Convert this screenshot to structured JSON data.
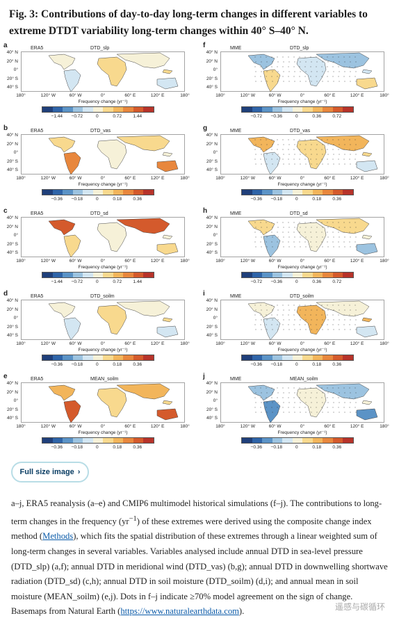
{
  "title": "Fig. 3: Contributions of day-to-day long-term changes in different variables to extreme DTDT variability long-term changes within 40° S–40° N.",
  "panels": [
    {
      "letter": "a",
      "source": "ERA5",
      "variable": "DTD_slp",
      "ticks": [
        "−1.44",
        "−0.72",
        "0",
        "0.72",
        "1.44"
      ]
    },
    {
      "letter": "f",
      "source": "MME",
      "variable": "DTD_slp",
      "ticks": [
        "−0.72",
        "−0.36",
        "0",
        "0.36",
        "0.72"
      ]
    },
    {
      "letter": "b",
      "source": "ERA5",
      "variable": "DTD_vas",
      "ticks": [
        "−0.36",
        "−0.18",
        "0",
        "0.18",
        "0.36"
      ]
    },
    {
      "letter": "g",
      "source": "MME",
      "variable": "DTD_vas",
      "ticks": [
        "−0.36",
        "−0.18",
        "0",
        "0.18",
        "0.36"
      ]
    },
    {
      "letter": "c",
      "source": "ERA5",
      "variable": "DTD_sd",
      "ticks": [
        "−1.44",
        "−0.72",
        "0",
        "0.72",
        "1.44"
      ]
    },
    {
      "letter": "h",
      "source": "MME",
      "variable": "DTD_sd",
      "ticks": [
        "−0.72",
        "−0.36",
        "0",
        "0.36",
        "0.72"
      ]
    },
    {
      "letter": "d",
      "source": "ERA5",
      "variable": "DTD_soilm",
      "ticks": [
        "−0.36",
        "−0.18",
        "0",
        "0.18",
        "0.36"
      ]
    },
    {
      "letter": "i",
      "source": "MME",
      "variable": "DTD_soilm",
      "ticks": [
        "−0.36",
        "−0.18",
        "0",
        "0.18",
        "0.36"
      ]
    },
    {
      "letter": "e",
      "source": "ERA5",
      "variable": "MEAN_soilm",
      "ticks": [
        "−0.36",
        "−0.18",
        "0",
        "0.18",
        "0.36"
      ]
    },
    {
      "letter": "j",
      "source": "MME",
      "variable": "MEAN_soilm",
      "ticks": [
        "−0.36",
        "−0.18",
        "0",
        "0.18",
        "0.36"
      ]
    }
  ],
  "lat_labels": [
    "40° N",
    "20° N",
    "0°",
    "20° S",
    "40° S"
  ],
  "lon_labels": [
    "180°",
    "120° W",
    "60° W",
    "0°",
    "60° E",
    "120° E",
    "180°"
  ],
  "freq_label": "Frequency change (yr⁻¹)",
  "colorbar_colors": [
    "#1f3f7a",
    "#2f64a8",
    "#5b93c6",
    "#9cc3e0",
    "#d3e6f2",
    "#f6f1d8",
    "#f8d98e",
    "#f2b55b",
    "#e8873d",
    "#d45a2c",
    "#b7332a"
  ],
  "button_label": "Full size image",
  "caption": {
    "p1": "a–j, ERA5 reanalysis (a–e) and CMIP6 multimodel historical simulations (f–j). The contributions to long-term changes in the frequency (yr",
    "sup": "−1",
    "p2": ") of these extremes were derived using the composite change index method (",
    "link1": "Methods",
    "p3": "), which fits the spatial distribution of these extremes through a linear weighted sum of long-term changes in several variables. Variables analysed include annual DTD in sea-level pressure (DTD_slp) (a,f); annual DTD in meridional wind (DTD_vas) (b,g); annual DTD in downwelling shortwave radiation (DTD_sd) (c,h); annual DTD in soil moisture (DTD_soilm) (d,i); and annual mean in soil moisture (MEAN_soilm) (e,j). Dots in f–j indicate ≥70% model agreement on the sign of change. Basemaps from Natural Earth (",
    "link2": "https://www.naturalearthdata.com",
    "p4": ")."
  },
  "watermark": "遥感与碳循环"
}
